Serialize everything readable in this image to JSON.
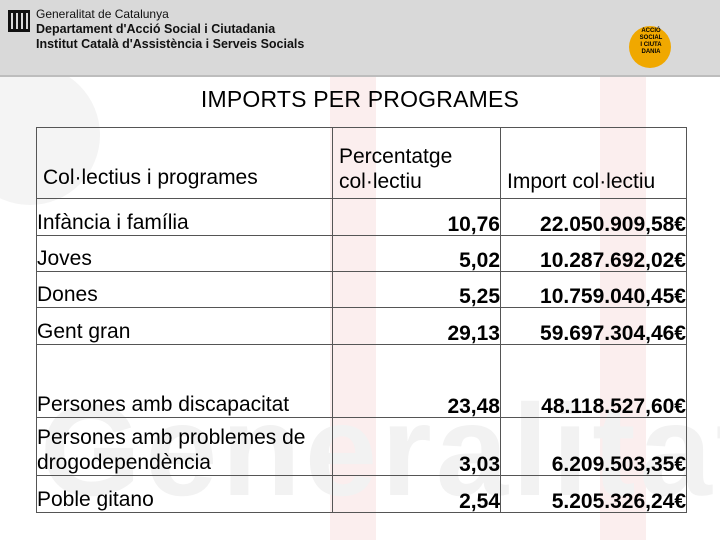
{
  "header": {
    "org_line1": "Generalitat de Catalunya",
    "org_line2": "Departament d'Acció Social i Ciutadania",
    "org_line3": "Institut Català d'Assistència i Serveis Socials",
    "badge_text": [
      "ACCIÓ",
      "SOCIAL",
      "I CIUTA",
      "DANIA"
    ],
    "badge_color": "#f0a800",
    "bar_color": "#d9d9d9"
  },
  "watermark": {
    "text": "Generalitat"
  },
  "title": "IMPORTS PER PROGRAMES",
  "table": {
    "headers": [
      "Col·lectius i programes",
      "Percentatge col·lectiu",
      "Import col·lectiu"
    ],
    "rows": [
      {
        "collectiu": "Infància i família",
        "percentatge": "10,76",
        "import": "22.050.909,58€"
      },
      {
        "collectiu": "Joves",
        "percentatge": "5,02",
        "import": "10.287.692,02€"
      },
      {
        "collectiu": "Dones",
        "percentatge": "5,25",
        "import": "10.759.040,45€"
      },
      {
        "collectiu": "Gent gran",
        "percentatge": "29,13",
        "import": "59.697.304,46€"
      },
      {
        "collectiu": "Persones amb discapacitat",
        "percentatge": "23,48",
        "import": "48.118.527,60€"
      },
      {
        "collectiu": "Persones amb problemes de drogodependència",
        "percentatge": "3,03",
        "import": "6.209.503,35€"
      },
      {
        "collectiu": "Poble gitano",
        "percentatge": "2,54",
        "import": "5.205.326,24€"
      }
    ]
  }
}
